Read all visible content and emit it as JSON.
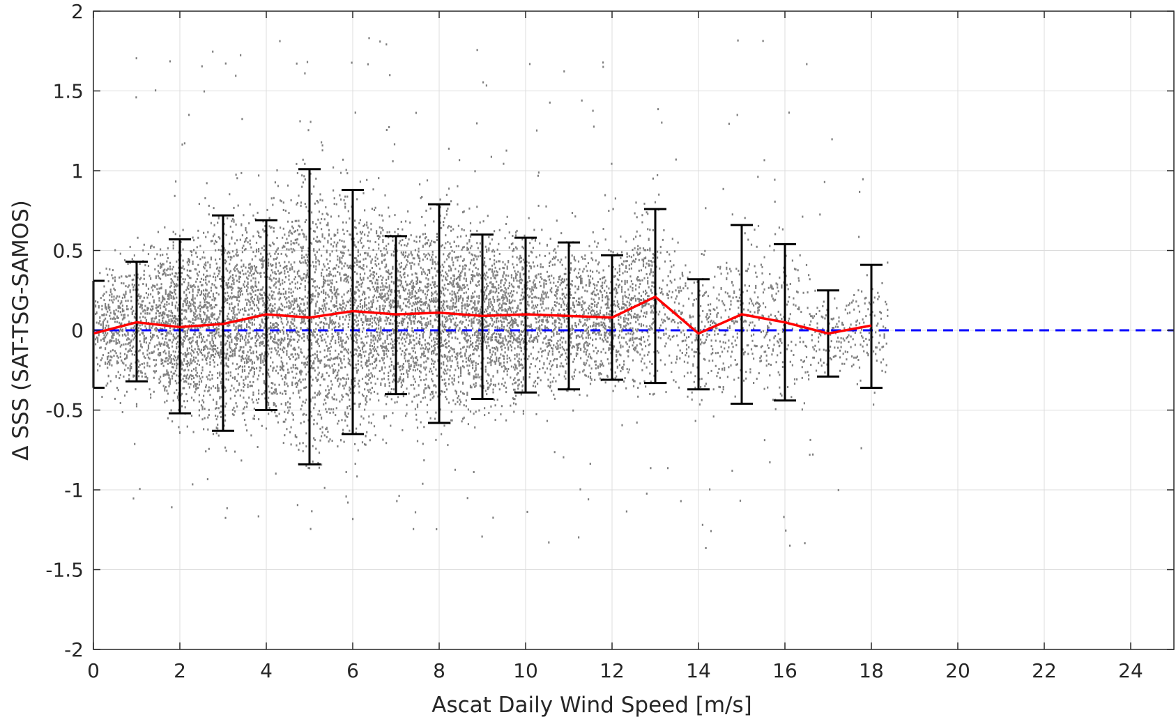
{
  "chart_data": {
    "type": "scatter",
    "title": "",
    "xlabel": "Ascat Daily Wind Speed [m/s]",
    "ylabel": "Δ SSS (SAT-TSG-SAMOS)",
    "xlim": [
      0,
      25
    ],
    "ylim": [
      -2,
      2
    ],
    "xticks": [
      0,
      2,
      4,
      6,
      8,
      10,
      12,
      14,
      16,
      18,
      20,
      22,
      24
    ],
    "yticks": [
      -2,
      -1.5,
      -1,
      -0.5,
      0,
      0.5,
      1,
      1.5,
      2
    ],
    "xtick_labels": [
      "0",
      "2",
      "4",
      "6",
      "8",
      "10",
      "12",
      "14",
      "16",
      "18",
      "20",
      "22",
      "24"
    ],
    "ytick_labels": [
      "-2",
      "-1.5",
      "-1",
      "-0.5",
      "0",
      "0.5",
      "1",
      "1.5",
      "2"
    ],
    "grid": true,
    "series": [
      {
        "type": "scatter",
        "color": "#808080",
        "description_counts": "dense",
        "spread": [
          {
            "x": 0,
            "mean": 0.0,
            "sd": 0.25
          },
          {
            "x": 1,
            "mean": 0.05,
            "sd": 0.35
          },
          {
            "x": 2,
            "mean": 0.03,
            "sd": 0.45
          },
          {
            "x": 3,
            "mean": 0.05,
            "sd": 0.55
          },
          {
            "x": 4,
            "mean": 0.1,
            "sd": 0.55
          },
          {
            "x": 5,
            "mean": 0.08,
            "sd": 0.7
          },
          {
            "x": 6,
            "mean": 0.12,
            "sd": 0.65
          },
          {
            "x": 7,
            "mean": 0.1,
            "sd": 0.45
          },
          {
            "x": 8,
            "mean": 0.11,
            "sd": 0.55
          },
          {
            "x": 9,
            "mean": 0.09,
            "sd": 0.45
          },
          {
            "x": 10,
            "mean": 0.1,
            "sd": 0.42
          },
          {
            "x": 11,
            "mean": 0.09,
            "sd": 0.4
          },
          {
            "x": 12,
            "mean": 0.08,
            "sd": 0.35
          },
          {
            "x": 13,
            "mean": 0.21,
            "sd": 0.45
          },
          {
            "x": 14,
            "mean": -0.02,
            "sd": 0.3
          },
          {
            "x": 15,
            "mean": 0.1,
            "sd": 0.45
          },
          {
            "x": 16,
            "mean": 0.05,
            "sd": 0.4
          },
          {
            "x": 17,
            "mean": -0.02,
            "sd": 0.2
          },
          {
            "x": 18,
            "mean": 0.03,
            "sd": 0.3
          }
        ]
      },
      {
        "type": "line",
        "color": "#ff0000",
        "x": [
          0,
          1,
          2,
          3,
          4,
          5,
          6,
          7,
          8,
          9,
          10,
          11,
          12,
          13,
          14,
          15,
          16,
          17,
          18
        ],
        "y": [
          -0.02,
          0.05,
          0.02,
          0.04,
          0.1,
          0.08,
          0.12,
          0.1,
          0.11,
          0.09,
          0.1,
          0.09,
          0.08,
          0.21,
          -0.02,
          0.1,
          0.05,
          -0.02,
          0.03
        ]
      },
      {
        "type": "errorbar",
        "color": "#000000",
        "x": [
          0,
          1,
          2,
          3,
          4,
          5,
          6,
          7,
          8,
          9,
          10,
          11,
          12,
          13,
          14,
          15,
          16,
          17,
          18
        ],
        "upper": [
          0.31,
          0.43,
          0.57,
          0.72,
          0.69,
          1.01,
          0.88,
          0.59,
          0.79,
          0.6,
          0.58,
          0.55,
          0.47,
          0.76,
          0.32,
          0.66,
          0.54,
          0.25,
          0.41
        ],
        "lower": [
          -0.36,
          -0.32,
          -0.52,
          -0.63,
          -0.5,
          -0.84,
          -0.65,
          -0.4,
          -0.58,
          -0.43,
          -0.39,
          -0.37,
          -0.31,
          -0.33,
          -0.37,
          -0.46,
          -0.44,
          -0.29,
          -0.36
        ]
      },
      {
        "type": "reference-line",
        "color": "#0000ff",
        "style": "dashed",
        "y": 0
      }
    ]
  }
}
